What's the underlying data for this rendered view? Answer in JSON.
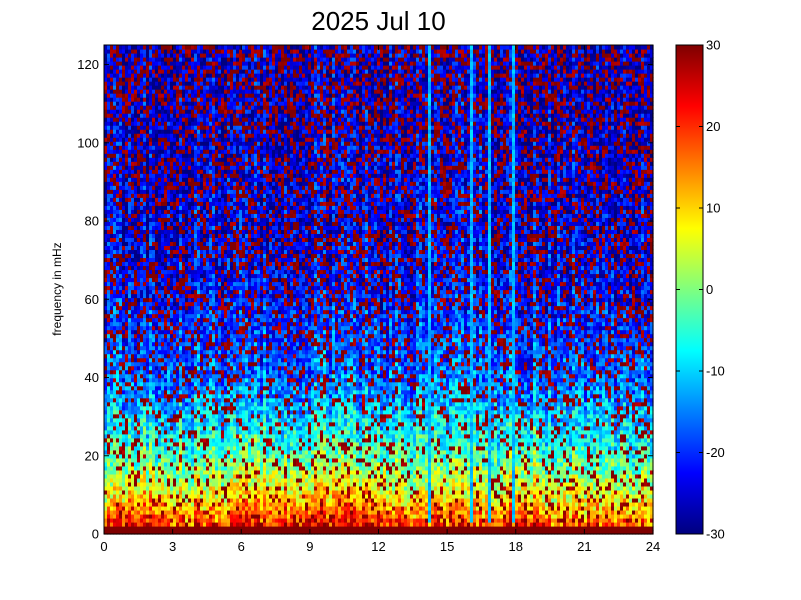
{
  "chart_data": {
    "type": "heatmap",
    "title": "2025 Jul 10",
    "xlabel": "",
    "ylabel": "frequency in mHz",
    "xlim": [
      0,
      24
    ],
    "ylim": [
      0,
      125
    ],
    "x_ticks": [
      "0",
      "3",
      "6",
      "9",
      "12",
      "15",
      "18",
      "21",
      "24"
    ],
    "y_ticks": [
      "0",
      "20",
      "40",
      "60",
      "80",
      "100",
      "120"
    ],
    "colorbar": {
      "range": [
        -30,
        30
      ],
      "ticks": [
        "-30",
        "-20",
        "-10",
        "0",
        "10",
        "20",
        "30"
      ],
      "colormap": "jet"
    },
    "grid": false,
    "intensity_profile": [
      {
        "frequency_mHz": 2,
        "value": 18
      },
      {
        "frequency_mHz": 6,
        "value": 12
      },
      {
        "frequency_mHz": 12,
        "value": 4
      },
      {
        "frequency_mHz": 20,
        "value": -4
      },
      {
        "frequency_mHz": 30,
        "value": -10
      },
      {
        "frequency_mHz": 40,
        "value": -16
      },
      {
        "frequency_mHz": 55,
        "value": -20
      },
      {
        "frequency_mHz": 70,
        "value": -23
      },
      {
        "frequency_mHz": 90,
        "value": -24
      },
      {
        "frequency_mHz": 125,
        "value": -25
      }
    ],
    "bright_vertical_lines_hours": [
      14.2,
      16.1,
      16.9,
      17.9
    ],
    "high_activity_periods_hours": [
      [
        1,
        2.8
      ],
      [
        5.5,
        12.5
      ],
      [
        17.5,
        19
      ]
    ]
  }
}
